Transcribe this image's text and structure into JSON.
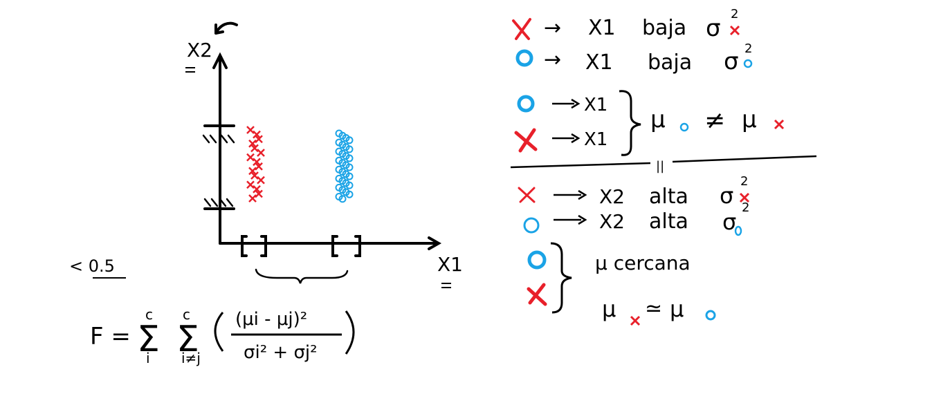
{
  "colors": {
    "red": "#e8202a",
    "blue": "#1aa3e6",
    "ink": "#000000"
  },
  "plot": {
    "y_axis_label": "X2",
    "x_axis_label": "X1",
    "threshold": "< 0.5",
    "red_marker": "x",
    "blue_marker": "o",
    "red_points": 16,
    "blue_points": 30
  },
  "formula": {
    "lhs": "F =",
    "sum1_top": "c",
    "sum1_bottom": "i",
    "sum2_top": "c",
    "sum2_bottom": "i≠j",
    "numerator": "(μi - μj)²",
    "denominator": "σi² + σj²"
  },
  "notes": {
    "row1": {
      "arrow": "→",
      "var": "X1",
      "text": "baja",
      "sigma": "σ",
      "sup": "2"
    },
    "row2": {
      "arrow": "→",
      "var": "X1",
      "text": "baja",
      "sigma": "σ",
      "sup": "2"
    },
    "row3": {
      "var": "X1"
    },
    "row4": {
      "var": "X1"
    },
    "mu_compare": {
      "mu": "μ",
      "neq": "≠",
      "mu2": "μ"
    },
    "divider_mark": "||",
    "row5": {
      "var": "X2",
      "text": "alta",
      "sigma": "σ",
      "sup": "2"
    },
    "row6": {
      "var": "X2",
      "text": "alta",
      "sigma": "σ",
      "sup": "2"
    },
    "cercana": "μ cercana",
    "approx": {
      "mu": "μ",
      "sym": "≃",
      "mu2": "μ"
    }
  }
}
